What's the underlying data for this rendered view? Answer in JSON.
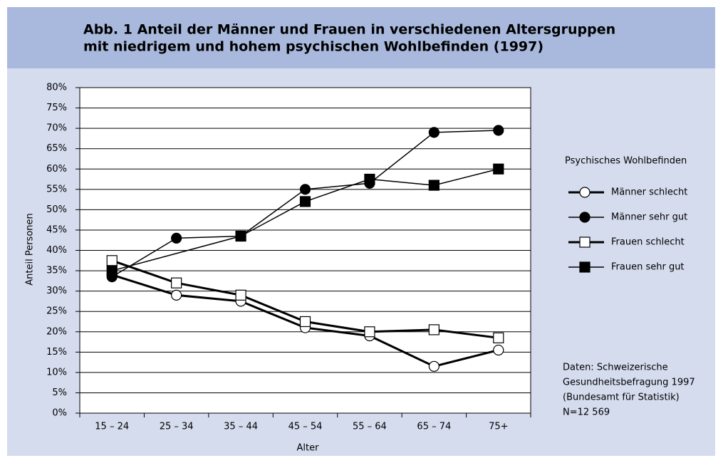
{
  "chart_data": {
    "type": "line",
    "title": [
      "Abb. 1  Anteil der Männer und Frauen in verschiedenen Altersgruppen",
      "mit niedrigem und hohem psychischen Wohlbefinden (1997)"
    ],
    "x_label": "Alter",
    "y_label": "Anteil Personen",
    "categories": [
      "15 – 24",
      "25 – 34",
      "35 – 44",
      "45 – 54",
      "55 – 64",
      "65 – 74",
      "75+"
    ],
    "ylim": [
      0,
      80
    ],
    "yticks": [
      {
        "value": 0,
        "label": "0%"
      },
      {
        "value": 5,
        "label": "5%"
      },
      {
        "value": 10,
        "label": "10%"
      },
      {
        "value": 15,
        "label": "15%"
      },
      {
        "value": 20,
        "label": "20%"
      },
      {
        "value": 25,
        "label": "25%"
      },
      {
        "value": 30,
        "label": "30%"
      },
      {
        "value": 35,
        "label": "35%"
      },
      {
        "value": 40,
        "label": "40%"
      },
      {
        "value": 45,
        "label": "45%"
      },
      {
        "value": 50,
        "label": "50%"
      },
      {
        "value": 55,
        "label": "55%"
      },
      {
        "value": 60,
        "label": "60%"
      },
      {
        "value": 65,
        "label": "65%"
      },
      {
        "value": 70,
        "label": "70%"
      },
      {
        "value": 75,
        "label": "75%"
      },
      {
        "value": 80,
        "label": "80%"
      }
    ],
    "grid": true,
    "legend_title": "Psychisches Wohlbefinden",
    "series": [
      {
        "name": "Männer schlecht",
        "color": "#000000",
        "marker": "circle",
        "filled": false,
        "line_width": 3,
        "values": [
          34,
          29,
          27.5,
          21,
          19,
          11.5,
          15.5
        ]
      },
      {
        "name": "Männer sehr gut",
        "color": "#000000",
        "marker": "circle",
        "filled": true,
        "line_width": 1.5,
        "values": [
          33.5,
          43,
          43.5,
          55,
          56.5,
          69,
          69.5
        ]
      },
      {
        "name": "Frauen schlecht",
        "color": "#000000",
        "marker": "square",
        "filled": false,
        "line_width": 3,
        "values": [
          37.5,
          32,
          29,
          22.5,
          20,
          20.5,
          18.5
        ]
      },
      {
        "name": "Frauen sehr gut",
        "color": "#000000",
        "marker": "square",
        "filled": true,
        "line_width": 1.5,
        "values": [
          35,
          null,
          43.5,
          52,
          57.5,
          56,
          60
        ]
      }
    ],
    "note": [
      "Daten: Schweizerische",
      "Gesundheitsbefragung 1997",
      "(Bundesamt für Statistik)",
      "N=12 569"
    ]
  }
}
